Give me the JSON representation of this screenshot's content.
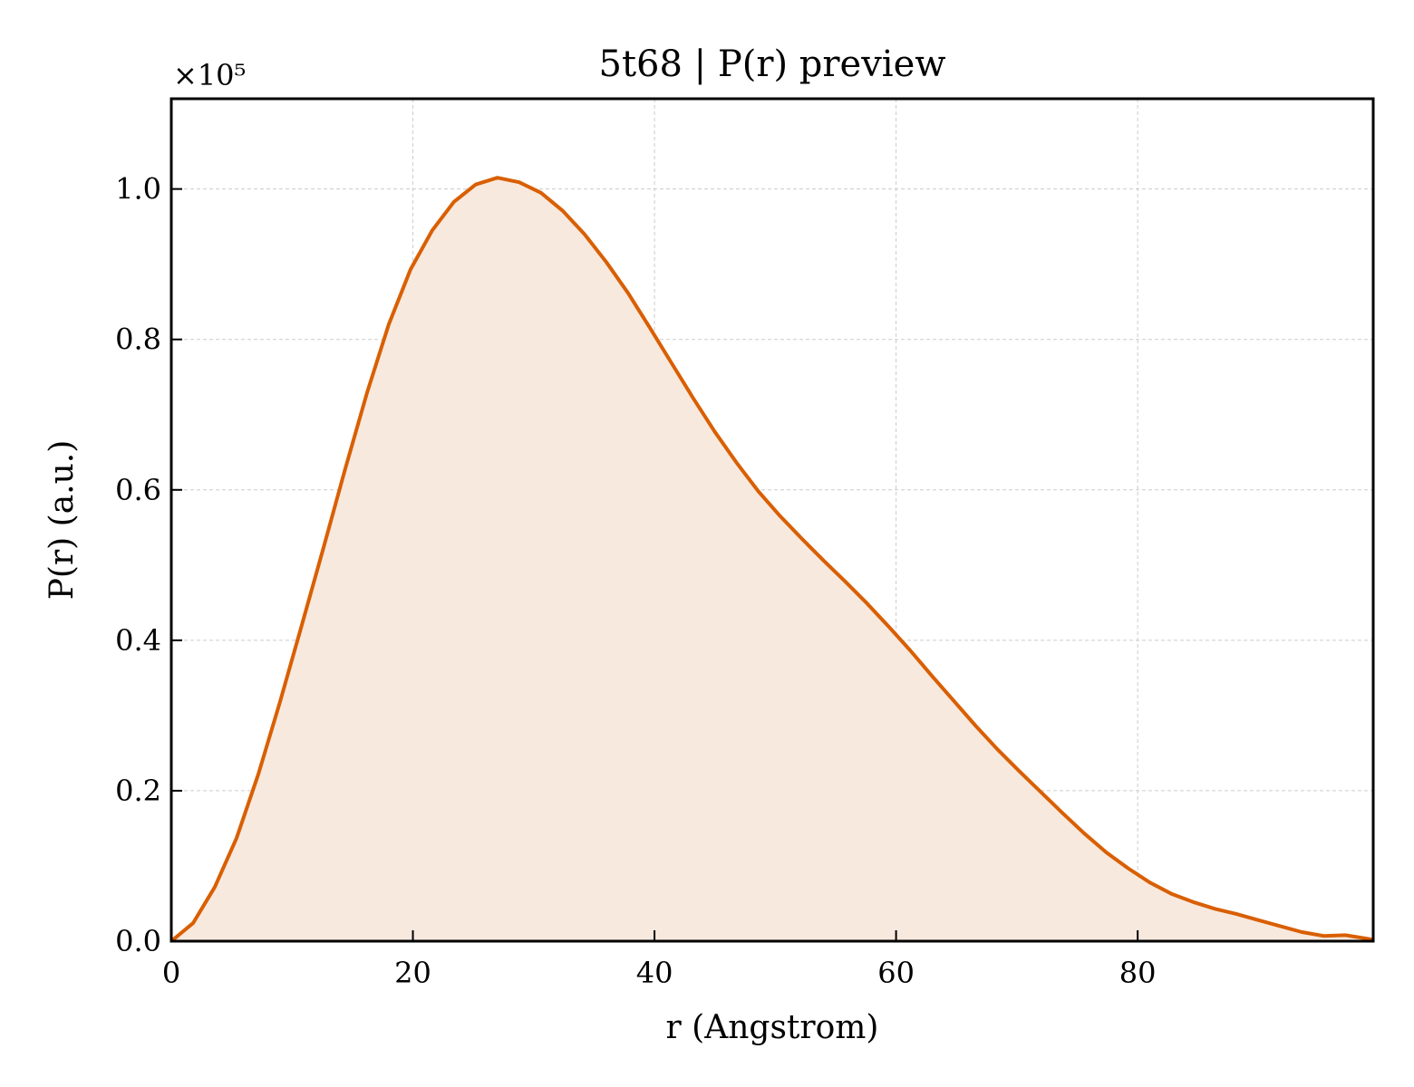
{
  "chart_data": {
    "type": "area",
    "title": "5t68 | P(r) preview",
    "xlabel": "r (Angstrom)",
    "ylabel": "P(r) (a.u.)",
    "y_offset_label": "×10⁵",
    "xlim": [
      0,
      99.5
    ],
    "ylim": [
      0,
      1.12
    ],
    "xticks": [
      0,
      20,
      40,
      60,
      80
    ],
    "xtick_labels": [
      "0",
      "20",
      "40",
      "60",
      "80"
    ],
    "yticks": [
      0.0,
      0.2,
      0.4,
      0.6,
      0.8,
      1.0
    ],
    "ytick_labels": [
      "0.0",
      "0.2",
      "0.4",
      "0.6",
      "0.8",
      "1.0"
    ],
    "grid": true,
    "line_color": "#d95f02",
    "fill_color": "#f8e9df",
    "series": [
      {
        "x": [
          0,
          1.8,
          3.6,
          5.4,
          7.2,
          9.0,
          10.8,
          12.6,
          14.4,
          16.2,
          18.0,
          19.8,
          21.6,
          23.4,
          25.2,
          27.0,
          28.8,
          30.6,
          32.4,
          34.2,
          36.0,
          37.8,
          39.6,
          41.4,
          43.2,
          45.0,
          46.8,
          48.6,
          50.4,
          52.2,
          54.0,
          55.8,
          57.6,
          59.4,
          61.2,
          63.0,
          64.8,
          66.6,
          68.4,
          70.2,
          72.0,
          73.8,
          75.6,
          77.4,
          79.2,
          81.0,
          82.8,
          84.6,
          86.4,
          88.2,
          90.0,
          91.8,
          93.6,
          95.4,
          97.2,
          99.5
        ],
        "y": [
          0.0,
          0.024,
          0.072,
          0.137,
          0.222,
          0.318,
          0.42,
          0.523,
          0.628,
          0.729,
          0.82,
          0.893,
          0.945,
          0.983,
          1.006,
          1.015,
          1.009,
          0.995,
          0.971,
          0.94,
          0.903,
          0.862,
          0.816,
          0.769,
          0.722,
          0.677,
          0.636,
          0.598,
          0.565,
          0.535,
          0.506,
          0.478,
          0.449,
          0.418,
          0.386,
          0.352,
          0.319,
          0.286,
          0.255,
          0.226,
          0.198,
          0.17,
          0.143,
          0.118,
          0.097,
          0.078,
          0.063,
          0.052,
          0.043,
          0.036,
          0.028,
          0.02,
          0.012,
          0.007,
          0.008,
          0.002
        ]
      }
    ]
  }
}
